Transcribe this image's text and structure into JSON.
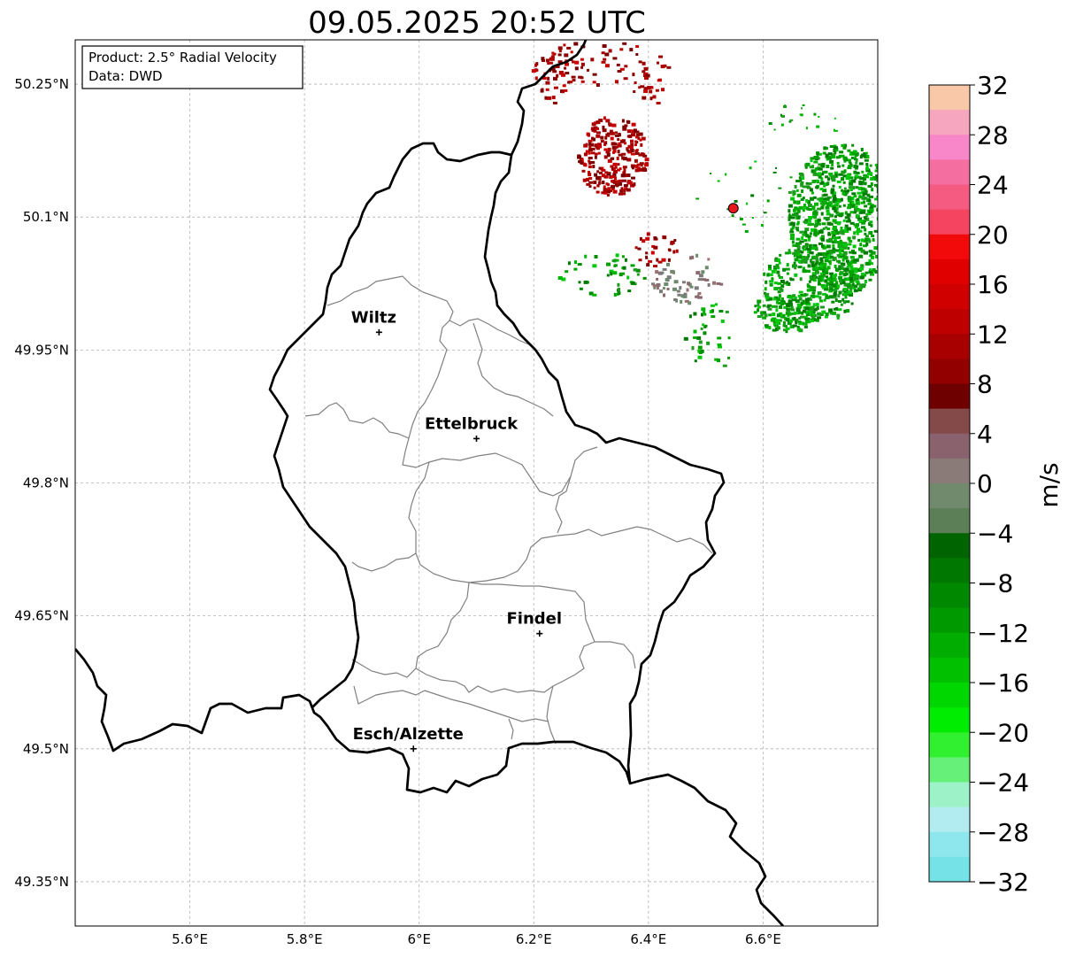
{
  "title": "09.05.2025 20:52 UTC",
  "info": {
    "product": "Product: 2.5° Radial Velocity",
    "source": "Data: DWD"
  },
  "axes": {
    "lon_ticks": [
      "5.6°E",
      "5.8°E",
      "6°E",
      "6.2°E",
      "6.4°E",
      "6.6°E"
    ],
    "lat_ticks": [
      "50.25°N",
      "50.1°N",
      "49.95°N",
      "49.8°N",
      "49.65°N",
      "49.5°N",
      "49.35°N"
    ],
    "lon_range": [
      5.4,
      6.8
    ],
    "lat_range": [
      49.3,
      50.3
    ]
  },
  "places": [
    {
      "name": "Wiltz",
      "lon": 5.93,
      "lat": 49.97
    },
    {
      "name": "Ettelbruck",
      "lon": 6.1,
      "lat": 49.85
    },
    {
      "name": "Findel",
      "lon": 6.21,
      "lat": 49.63
    },
    {
      "name": "Esch/Alzette",
      "lon": 5.99,
      "lat": 49.5
    }
  ],
  "radar_site": {
    "lon": 6.548,
    "lat": 50.11,
    "color": "#e41a1c"
  },
  "colorbar": {
    "label": "m/s",
    "ticks": [
      "32",
      "28",
      "24",
      "20",
      "16",
      "12",
      "8",
      "4",
      "0",
      "−4",
      "−8",
      "−12",
      "−16",
      "−20",
      "−24",
      "−28",
      "−32"
    ],
    "vmin": -32,
    "vmax": 32,
    "colors": [
      "#f9c8a8",
      "#f7a6c0",
      "#f787c8",
      "#f56ea0",
      "#f55a80",
      "#f54460",
      "#f20a0a",
      "#e00000",
      "#d00000",
      "#be0000",
      "#a80000",
      "#930000",
      "#6e0000",
      "#844a4a",
      "#8a626e",
      "#8b7b78",
      "#718a6d",
      "#5c7f58",
      "#006400",
      "#007800",
      "#008900",
      "#009a00",
      "#00ad00",
      "#00c000",
      "#00d600",
      "#00ec00",
      "#30f030",
      "#66f07a",
      "#9ef2c8",
      "#b2ebf0",
      "#8de7ec",
      "#74e2e6"
    ]
  }
}
